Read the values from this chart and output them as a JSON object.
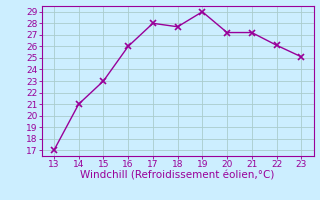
{
  "x": [
    13,
    14,
    15,
    16,
    17,
    18,
    19,
    20,
    21,
    22,
    23
  ],
  "y": [
    17,
    21,
    23,
    26,
    28,
    27.7,
    29,
    27.2,
    27.2,
    26.1,
    25.1
  ],
  "line_color": "#990099",
  "marker": "x",
  "marker_size": 4,
  "marker_linewidth": 1.2,
  "line_width": 1.0,
  "xlabel": "Windchill (Refroidissement éolien,°C)",
  "xlabel_color": "#990099",
  "xlabel_fontsize": 7.5,
  "xlim": [
    12.5,
    23.5
  ],
  "ylim": [
    16.5,
    29.5
  ],
  "xticks": [
    13,
    14,
    15,
    16,
    17,
    18,
    19,
    20,
    21,
    22,
    23
  ],
  "yticks": [
    17,
    18,
    19,
    20,
    21,
    22,
    23,
    24,
    25,
    26,
    27,
    28,
    29
  ],
  "tick_color": "#990099",
  "tick_fontsize": 6.5,
  "background_color": "#cceeff",
  "grid_color": "#aacccc",
  "grid_linewidth": 0.6,
  "spine_color": "#990099"
}
